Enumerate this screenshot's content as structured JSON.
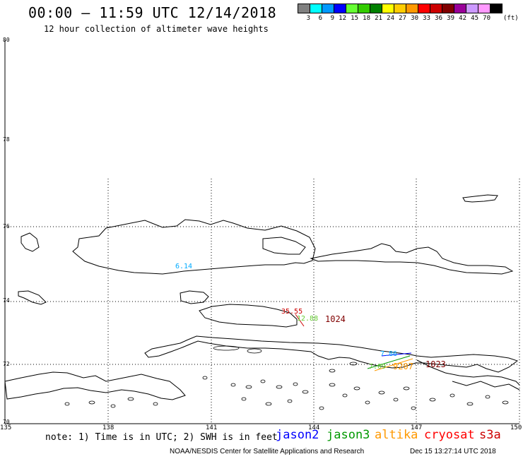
{
  "title": "00:00 – 11:59 UTC 12/14/2018",
  "subtitle": "12 hour collection of altimeter wave heights",
  "colorbar": {
    "labels": [
      "3",
      "6",
      "9",
      "12",
      "15",
      "18",
      "21",
      "24",
      "27",
      "30",
      "33",
      "36",
      "39",
      "42",
      "45",
      "70"
    ],
    "unit": "(ft)",
    "colors": [
      "#808080",
      "#00ffff",
      "#0099ff",
      "#0000ff",
      "#66ff33",
      "#33cc00",
      "#008000",
      "#ffff00",
      "#ffcc00",
      "#ff9900",
      "#ff0000",
      "#cc0000",
      "#800000",
      "#990099",
      "#cc99ff",
      "#ff99ff",
      "#000000"
    ]
  },
  "map": {
    "lat_labels": [
      "80",
      "78",
      "76",
      "74",
      "72",
      "70"
    ],
    "lon_labels": [
      "135",
      "138",
      "141",
      "144",
      "147",
      "150"
    ]
  },
  "observations": [
    {
      "text": "6.14",
      "color": "#00aaff"
    },
    {
      "text": "35.55",
      "color": "#cc0000"
    },
    {
      "text": "12.88",
      "color": "#66cc33"
    },
    {
      "text": "7.86",
      "color": "#00aaff"
    },
    {
      "text": "7.09",
      "color": "#66cc33"
    },
    {
      "text": "9207",
      "color": "#ff9900"
    }
  ],
  "pressure_labels": [
    "1024",
    "1023"
  ],
  "note": "note: 1) Time is in UTC; 2) SWH is in feet",
  "satellites": [
    {
      "name": "jason2",
      "color": "#0000ff"
    },
    {
      "name": "jason3",
      "color": "#009900"
    },
    {
      "name": "altika",
      "color": "#ff9900"
    },
    {
      "name": "cryosat",
      "color": "#ff0000"
    },
    {
      "name": "s3a",
      "color": "#cc0000"
    }
  ],
  "footer": {
    "left": "NOAA/NESDIS Center for Satellite Applications and Research",
    "right": "Dec 15 13:27:14 UTC 2018"
  }
}
